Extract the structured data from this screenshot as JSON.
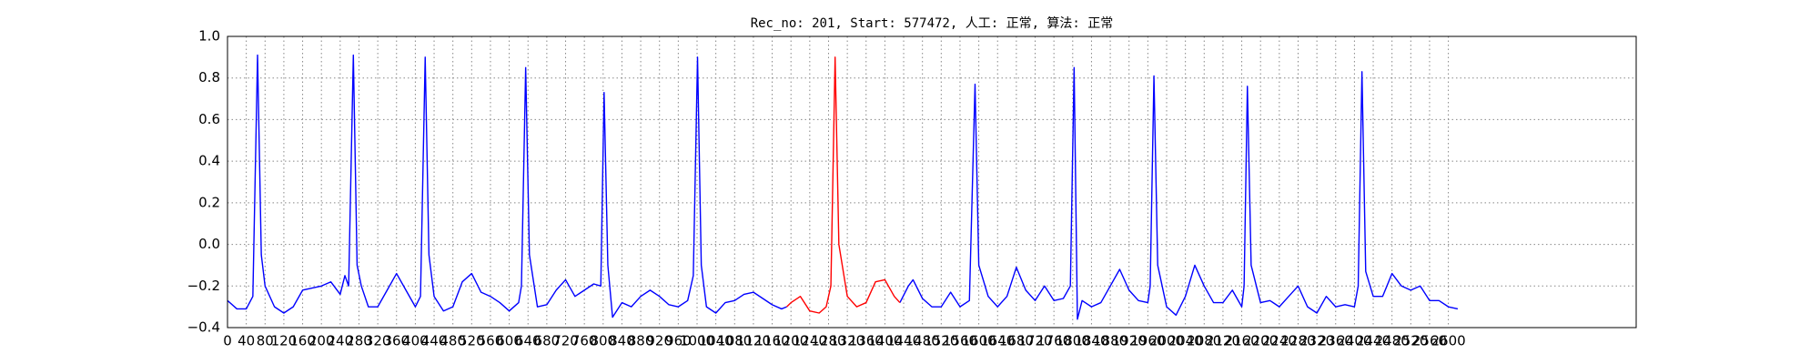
{
  "chart_data": {
    "type": "line",
    "title": "Rec_no: 201, Start: 577472, 人工: 正常, 算法: 正常",
    "x": [
      0,
      20,
      40,
      54,
      64,
      72,
      80,
      100,
      120,
      140,
      160,
      180,
      200,
      220,
      240,
      250,
      258,
      268,
      276,
      285,
      300,
      320,
      340,
      360,
      380,
      400,
      411,
      421,
      429,
      440,
      460,
      480,
      500,
      520,
      540,
      560,
      580,
      600,
      620,
      626,
      635,
      643,
      660,
      680,
      700,
      720,
      740,
      760,
      780,
      795,
      802,
      810,
      820,
      840,
      860,
      880,
      900,
      920,
      940,
      960,
      980,
      992,
      1001,
      1009,
      1020,
      1040,
      1060,
      1080,
      1100,
      1120,
      1140,
      1160,
      1180,
      1191,
      1200,
      1220,
      1240,
      1260,
      1275,
      1285,
      1294,
      1302,
      1320,
      1340,
      1360,
      1380,
      1400,
      1420,
      1432,
      1450,
      1460,
      1480,
      1500,
      1520,
      1540,
      1560,
      1580,
      1592,
      1600,
      1620,
      1640,
      1660,
      1680,
      1700,
      1720,
      1740,
      1760,
      1780,
      1795,
      1803,
      1810,
      1820,
      1840,
      1860,
      1880,
      1900,
      1920,
      1940,
      1960,
      1965,
      1973,
      1981,
      2000,
      2020,
      2040,
      2060,
      2080,
      2100,
      2120,
      2140,
      2160,
      2165,
      2172,
      2180,
      2200,
      2220,
      2240,
      2260,
      2280,
      2300,
      2320,
      2340,
      2360,
      2380,
      2400,
      2408,
      2416,
      2424,
      2440,
      2460,
      2480,
      2500,
      2520,
      2540,
      2560,
      2580,
      2600,
      2620
    ],
    "series": [
      {
        "color": "#0000ff",
        "values": [
          -0.27,
          -0.31,
          -0.31,
          -0.25,
          0.91,
          -0.05,
          -0.2,
          -0.3,
          -0.33,
          -0.3,
          -0.22,
          -0.21,
          -0.2,
          -0.18,
          -0.24,
          -0.15,
          -0.2,
          0.91,
          -0.1,
          -0.2,
          -0.3,
          -0.3,
          -0.22,
          -0.14,
          -0.22,
          -0.3,
          -0.25,
          0.9,
          -0.05,
          -0.25,
          -0.32,
          -0.3,
          -0.18,
          -0.14,
          -0.23,
          -0.25,
          -0.28,
          -0.32,
          -0.28,
          -0.2,
          0.85,
          -0.05,
          -0.3,
          -0.29,
          -0.22,
          -0.17,
          -0.25,
          -0.22,
          -0.19,
          -0.2,
          0.73,
          -0.1,
          -0.35,
          -0.28,
          -0.3,
          -0.25,
          -0.22,
          -0.25,
          -0.29,
          -0.3,
          -0.27,
          -0.15,
          0.9,
          -0.1,
          -0.3,
          -0.33,
          -0.28,
          -0.27,
          -0.24,
          -0.23,
          -0.26,
          -0.29,
          -0.31,
          -0.3,
          null,
          null,
          null,
          null,
          null,
          null,
          null,
          null,
          null,
          null,
          null,
          null,
          null,
          null,
          -0.28,
          -0.2,
          -0.17,
          -0.26,
          -0.3,
          -0.3,
          -0.23,
          -0.3,
          -0.27,
          0.77,
          -0.1,
          -0.25,
          -0.3,
          -0.25,
          -0.11,
          -0.22,
          -0.27,
          -0.2,
          -0.27,
          -0.26,
          -0.2,
          0.85,
          -0.36,
          -0.27,
          -0.3,
          -0.28,
          -0.2,
          -0.12,
          -0.22,
          -0.27,
          -0.28,
          -0.2,
          0.81,
          -0.1,
          -0.3,
          -0.34,
          -0.25,
          -0.1,
          -0.2,
          -0.28,
          -0.28,
          -0.22,
          -0.3,
          -0.2,
          0.76,
          -0.1,
          -0.28,
          -0.27,
          -0.3,
          -0.25,
          -0.2,
          -0.3,
          -0.33,
          -0.25,
          -0.3,
          -0.29,
          -0.3,
          -0.2,
          0.83,
          -0.13,
          -0.25,
          -0.25,
          -0.14,
          -0.2,
          -0.22,
          -0.2,
          -0.27,
          -0.27,
          -0.3,
          -0.31
        ]
      },
      {
        "color": "#ff0000",
        "values": [
          null,
          null,
          null,
          null,
          null,
          null,
          null,
          null,
          null,
          null,
          null,
          null,
          null,
          null,
          null,
          null,
          null,
          null,
          null,
          null,
          null,
          null,
          null,
          null,
          null,
          null,
          null,
          null,
          null,
          null,
          null,
          null,
          null,
          null,
          null,
          null,
          null,
          null,
          null,
          null,
          null,
          null,
          null,
          null,
          null,
          null,
          null,
          null,
          null,
          null,
          null,
          null,
          null,
          null,
          null,
          null,
          null,
          null,
          null,
          null,
          null,
          null,
          null,
          null,
          null,
          null,
          null,
          null,
          null,
          null,
          null,
          null,
          null,
          -0.3,
          -0.28,
          -0.25,
          -0.32,
          -0.33,
          -0.3,
          -0.2,
          0.9,
          0.0,
          -0.25,
          -0.3,
          -0.28,
          -0.18,
          -0.17,
          -0.25,
          -0.28,
          null,
          null,
          null,
          null,
          null,
          null,
          null,
          null,
          null,
          null,
          null,
          null,
          null,
          null,
          null,
          null,
          null,
          null,
          null,
          null,
          null,
          null,
          null,
          null,
          null,
          null,
          null,
          null,
          null,
          null,
          null,
          null,
          null,
          null,
          null,
          null,
          null,
          null,
          null,
          null,
          null,
          null,
          null,
          null,
          null,
          null,
          null,
          null,
          null,
          null,
          null,
          null,
          null,
          null,
          null,
          null,
          null,
          null,
          null,
          null,
          null,
          null,
          null,
          null,
          null,
          null,
          null,
          null,
          null
        ]
      }
    ],
    "xlim": [
      0,
      3000
    ],
    "xticks": [
      0,
      40,
      80,
      120,
      160,
      200,
      240,
      280,
      320,
      360,
      400,
      440,
      480,
      520,
      560,
      600,
      640,
      680,
      720,
      760,
      800,
      840,
      880,
      920,
      960,
      1000,
      1040,
      1080,
      1120,
      1160,
      1200,
      1240,
      1280,
      1320,
      1360,
      1400,
      1440,
      1480,
      1520,
      1560,
      1600,
      1640,
      1680,
      1720,
      1760,
      1800,
      1840,
      1880,
      1920,
      1960,
      2000,
      2040,
      2080,
      2120,
      2160,
      2200,
      2240,
      2280,
      2320,
      2360,
      2400,
      2440,
      2480,
      2520,
      2560,
      2600
    ],
    "ylim": [
      -0.4,
      1.0
    ],
    "yticks": [
      {
        "value": -0.4,
        "label": "−0.4"
      },
      {
        "value": -0.2,
        "label": "−0.2"
      },
      {
        "value": 0,
        "label": "0.0"
      },
      0.2,
      0.4,
      0.6,
      0.8,
      {
        "value": 1.0,
        "label": "1.0"
      }
    ],
    "grid": true
  }
}
